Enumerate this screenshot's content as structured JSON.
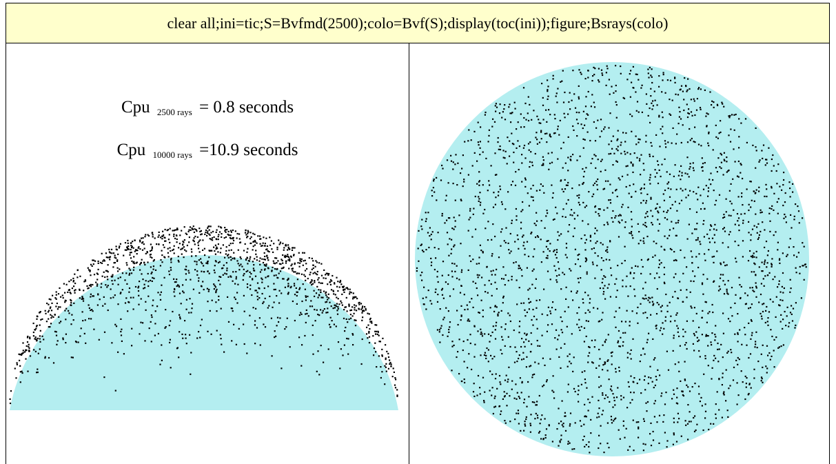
{
  "header": {
    "command": "clear all;ini=tic;S=Bvfmd(2500);colo=Bvf(S);display(toc(ini));figure;Bsrays(colo)"
  },
  "timing": [
    {
      "prefix": "Cpu",
      "subscript": "2500 rays",
      "suffix": "= 0.8 seconds"
    },
    {
      "prefix": "Cpu",
      "subscript": "10000 rays",
      "suffix": "=10.9 seconds"
    }
  ],
  "colors": {
    "header_bg": "#ffffcc",
    "fill": "#b4eef0",
    "marker": "#000000"
  },
  "plots": {
    "left": {
      "shape": "hemisphere side view",
      "points": 2500
    },
    "right": {
      "shape": "disk top view",
      "points": 2500
    }
  }
}
